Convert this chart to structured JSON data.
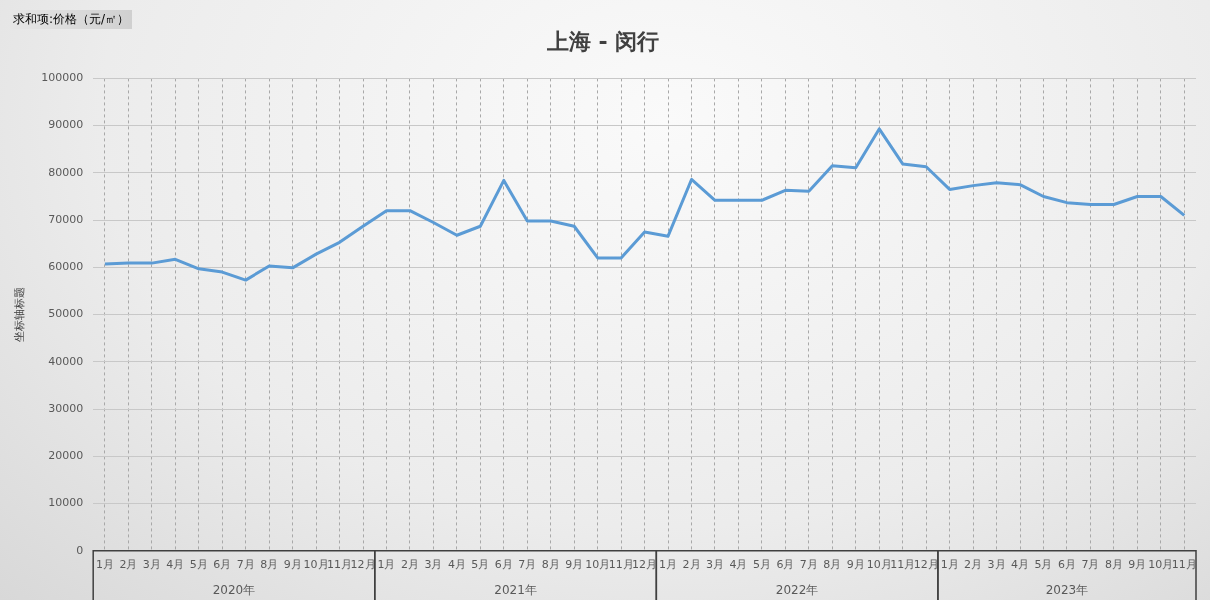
{
  "chart_data": {
    "type": "line",
    "title": "上海 - 闵行",
    "ylabel": "坐标轴标题",
    "categories": [
      "1月",
      "2月",
      "3月",
      "4月",
      "5月",
      "6月",
      "7月",
      "8月",
      "9月",
      "10月",
      "11月",
      "12月",
      "1月",
      "2月",
      "3月",
      "4月",
      "5月",
      "6月",
      "7月",
      "8月",
      "9月",
      "10月",
      "11月",
      "12月",
      "1月",
      "2月",
      "3月",
      "4月",
      "5月",
      "6月",
      "7月",
      "8月",
      "9月",
      "10月",
      "11月",
      "12月",
      "1月",
      "2月",
      "3月",
      "4月",
      "5月",
      "6月",
      "7月",
      "8月",
      "9月",
      "10月",
      "11月"
    ],
    "series": [
      {
        "color": "#5b9bd5",
        "values": [
          60700,
          60900,
          60900,
          61700,
          59700,
          59000,
          57300,
          60300,
          59900,
          62800,
          65300,
          68700,
          72000,
          72000,
          69500,
          66800,
          68700,
          78400,
          69800,
          69800,
          68700,
          62000,
          62000,
          67500,
          66600,
          78600,
          74200,
          74200,
          74200,
          76300,
          76100,
          81500,
          81100,
          89300,
          81900,
          81300,
          76500,
          77300,
          77900,
          77500,
          75000,
          73700,
          73300,
          73300,
          75000,
          75000,
          71000
        ]
      }
    ],
    "ylim": [
      0,
      100000
    ],
    "yticks": [
      0,
      10000,
      20000,
      30000,
      40000,
      50000,
      60000,
      70000,
      80000,
      90000,
      100000
    ],
    "grid": true,
    "legend": false,
    "marker": "none",
    "line_style": "solid",
    "annotations": [
      "求和项:价格（元/㎡）",
      "2020年",
      "2021年",
      "2022年",
      "2023年"
    ]
  }
}
